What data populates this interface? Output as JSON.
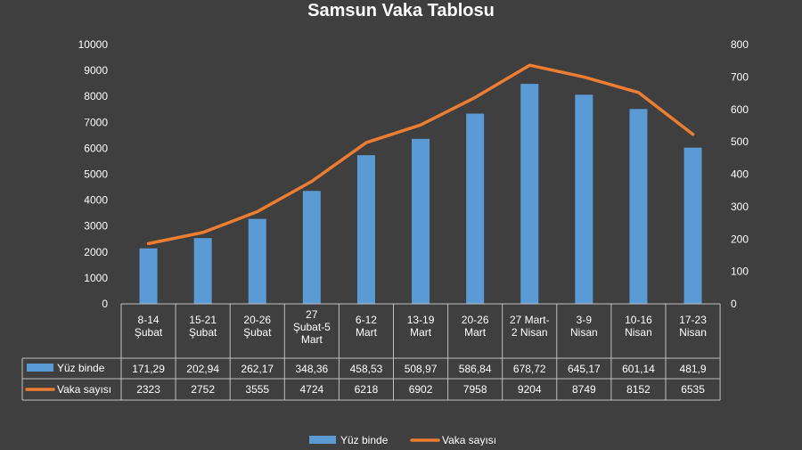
{
  "chart_data": {
    "type": "bar",
    "title": "Samsun Vaka Tablosu",
    "categories": [
      [
        "8-14",
        "Şubat"
      ],
      [
        "15-21",
        "Şubat"
      ],
      [
        "20-26",
        "Şubat"
      ],
      [
        "27",
        "Şubat-5",
        "Mart"
      ],
      [
        "6-12",
        "Mart"
      ],
      [
        "13-19",
        "Mart"
      ],
      [
        "20-26",
        "Mart"
      ],
      [
        "27 Mart-",
        "2 Nisan"
      ],
      [
        "3-9",
        "Nisan"
      ],
      [
        "10-16",
        "Nisan"
      ],
      [
        "17-23",
        "Nisan"
      ]
    ],
    "series": [
      {
        "name": "Yüz binde",
        "type": "bar",
        "axis": "right",
        "color": "#5b9bd5",
        "values": [
          171.29,
          202.94,
          262.17,
          348.36,
          458.53,
          508.97,
          586.84,
          678.72,
          645.17,
          601.14,
          481.9
        ],
        "labels": [
          "171,29",
          "202,94",
          "262,17",
          "348,36",
          "458,53",
          "508,97",
          "586,84",
          "678,72",
          "645,17",
          "601,14",
          "481,9"
        ]
      },
      {
        "name": "Vaka sayısı",
        "type": "line",
        "axis": "left",
        "color": "#ed7d31",
        "values": [
          2323,
          2752,
          3555,
          4724,
          6218,
          6902,
          7958,
          9204,
          8749,
          8152,
          6535
        ],
        "labels": [
          "2323",
          "2752",
          "3555",
          "4724",
          "6218",
          "6902",
          "7958",
          "9204",
          "8749",
          "8152",
          "6535"
        ]
      }
    ],
    "y_left": {
      "min": 0,
      "max": 10000,
      "ticks": [
        "0",
        "1000",
        "2000",
        "3000",
        "4000",
        "5000",
        "6000",
        "7000",
        "8000",
        "9000",
        "10000"
      ]
    },
    "y_right": {
      "min": 0,
      "max": 800,
      "ticks": [
        "0",
        "100",
        "200",
        "300",
        "400",
        "500",
        "600",
        "700",
        "800"
      ]
    },
    "data_table": true,
    "legend_position": "bottom",
    "grid": false
  },
  "colors": {
    "background": "#3f3f3f",
    "text": "#ffffff",
    "grid_lines": "#bfbfbf"
  }
}
